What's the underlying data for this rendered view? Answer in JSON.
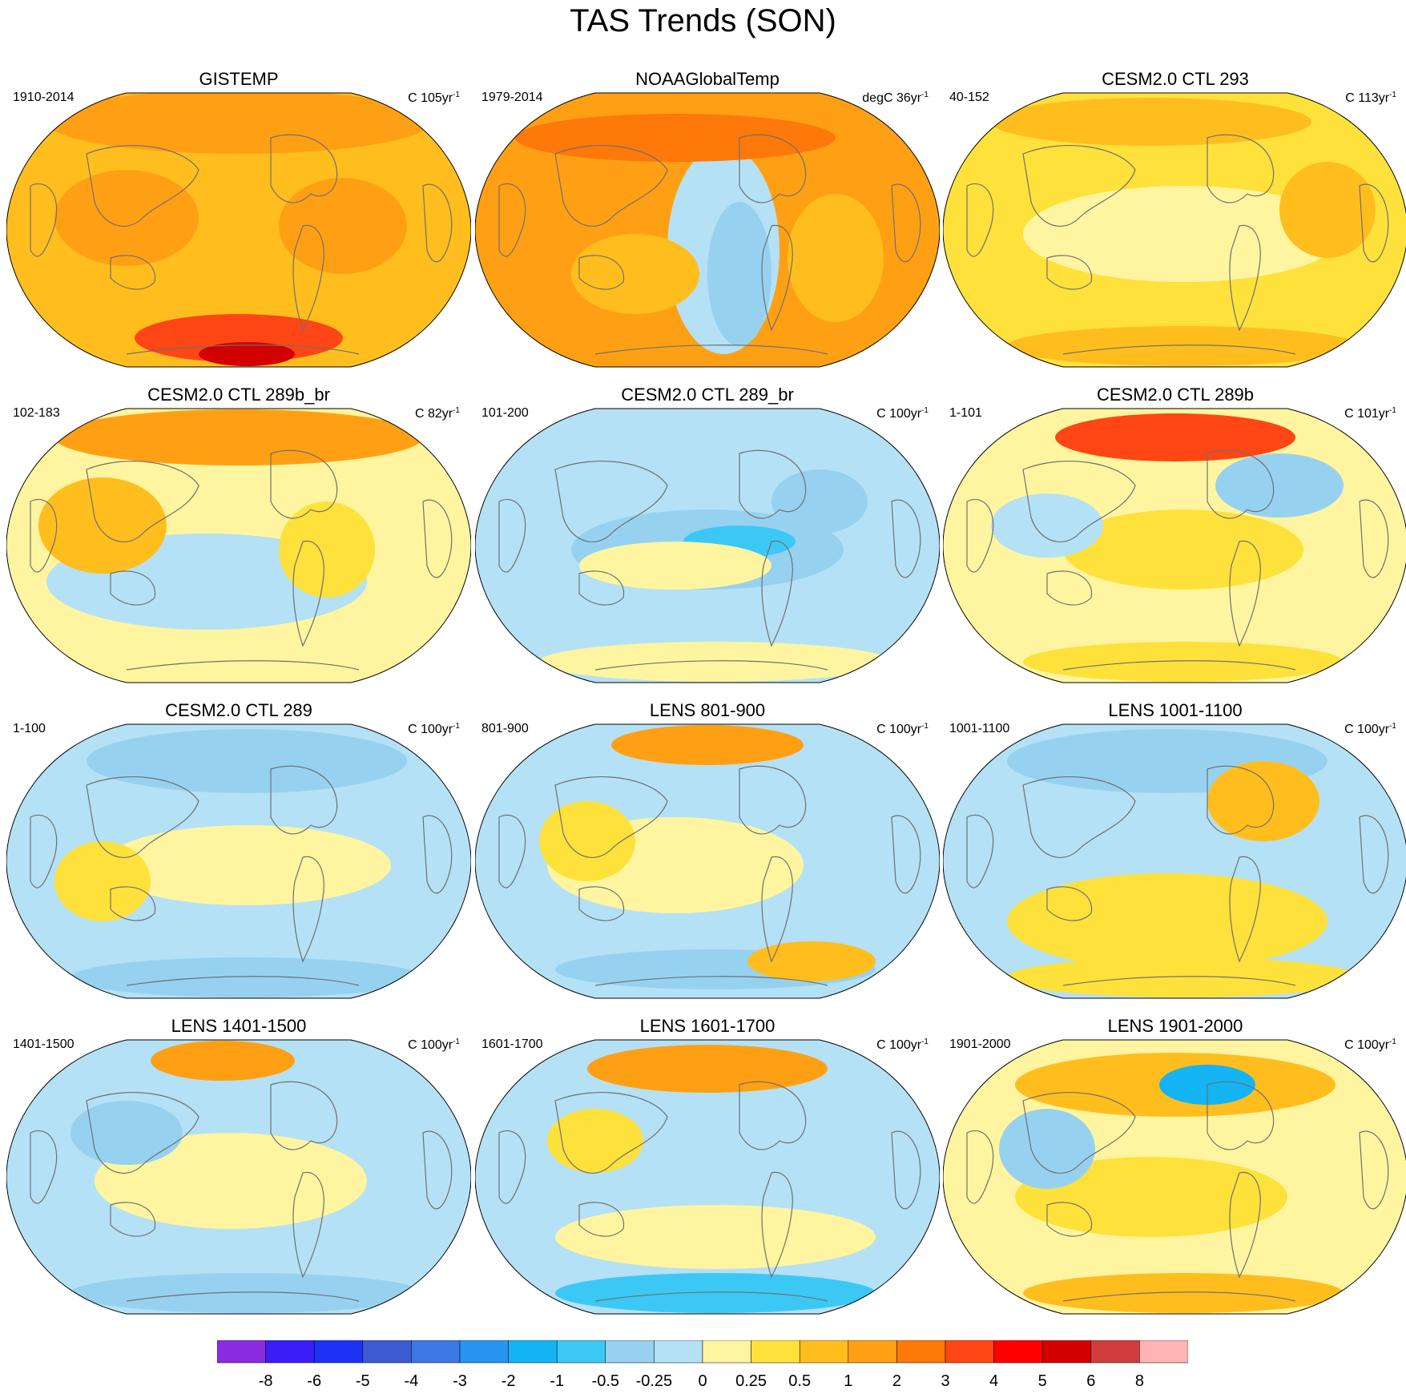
{
  "title": "TAS Trends (SON)",
  "panels": [
    {
      "title": "GISTEMP",
      "period": "1910-2014",
      "units": "C 105yr",
      "exp": "-1",
      "pattern": "obs1"
    },
    {
      "title": "NOAAGlobalTemp",
      "period": "1979-2014",
      "units": "degC 36yr",
      "exp": "-1",
      "pattern": "obs2"
    },
    {
      "title": "CESM2.0 CTL 293",
      "period": "40-152",
      "units": "C 113yr",
      "exp": "-1",
      "pattern": "warm"
    },
    {
      "title": "CESM2.0 CTL 289b_br",
      "period": "102-183",
      "units": "C 82yr",
      "exp": "-1",
      "pattern": "mixwarm"
    },
    {
      "title": "CESM2.0 CTL 289_br",
      "period": "101-200",
      "units": "C 100yr",
      "exp": "-1",
      "pattern": "cool"
    },
    {
      "title": "CESM2.0 CTL 289b",
      "period": "1-101",
      "units": "C 101yr",
      "exp": "-1",
      "pattern": "mixwarm2"
    },
    {
      "title": "CESM2.0 CTL 289",
      "period": "1-100",
      "units": "C 100yr",
      "exp": "-1",
      "pattern": "cool2"
    },
    {
      "title": "LENS 801-900",
      "period": "801-900",
      "units": "C 100yr",
      "exp": "-1",
      "pattern": "mix"
    },
    {
      "title": "LENS 1001-1100",
      "period": "1001-1100",
      "units": "C 100yr",
      "exp": "-1",
      "pattern": "mix2"
    },
    {
      "title": "LENS 1401-1500",
      "period": "1401-1500",
      "units": "C 100yr",
      "exp": "-1",
      "pattern": "cool3"
    },
    {
      "title": "LENS 1601-1700",
      "period": "1601-1700",
      "units": "C 100yr",
      "exp": "-1",
      "pattern": "cool4"
    },
    {
      "title": "LENS 1901-2000",
      "period": "1901-2000",
      "units": "C 100yr",
      "exp": "-1",
      "pattern": "mixwarm3"
    }
  ],
  "colorbar": {
    "colors": [
      "#8a2be2",
      "#3a1ef5",
      "#1e32f5",
      "#3c5ad2",
      "#3c78e6",
      "#2896f0",
      "#14b4f5",
      "#3cc8f5",
      "#96d2f0",
      "#b4e1f5",
      "#fff5a0",
      "#ffe13c",
      "#ffbe1e",
      "#ffa014",
      "#ff780a",
      "#ff4614",
      "#ff0000",
      "#d20000",
      "#d23c3c",
      "#ffb4b4"
    ],
    "labels": [
      "-8",
      "-6",
      "-5",
      "-4",
      "-3",
      "-2",
      "-1",
      "-0.5",
      "-0.25",
      "0",
      "0.25",
      "0.5",
      "1",
      "2",
      "3",
      "4",
      "5",
      "6",
      "8"
    ]
  }
}
